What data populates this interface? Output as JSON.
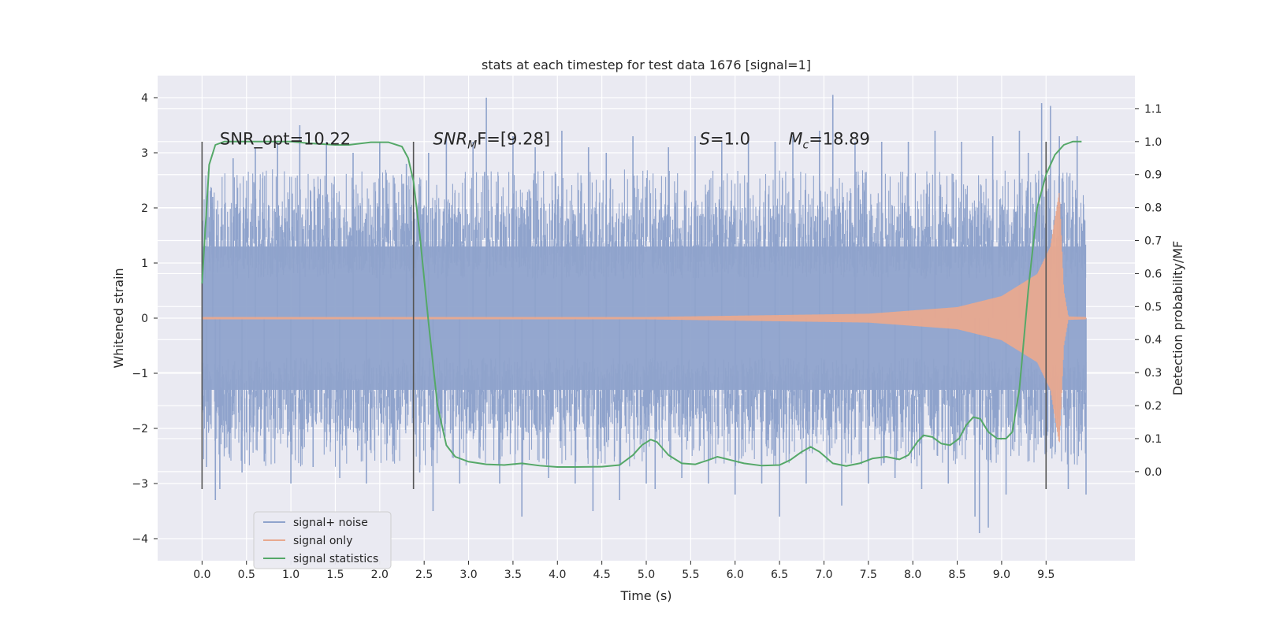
{
  "chart_data": {
    "type": "line",
    "title": "stats at each timestep for test data 1676 [signal=1]",
    "xlabel": "Time (s)",
    "ylabel": "Whitened strain",
    "y2label": "Detection probability/MF",
    "xlim": [
      -0.5,
      10.5
    ],
    "ylim": [
      -4.4,
      4.4
    ],
    "y2lim": [
      -0.27,
      1.2
    ],
    "xticks": [
      0.0,
      0.5,
      1.0,
      1.5,
      2.0,
      2.5,
      3.0,
      3.5,
      4.0,
      4.5,
      5.0,
      5.5,
      6.0,
      6.5,
      7.0,
      7.5,
      8.0,
      8.5,
      9.0,
      9.5
    ],
    "xtick_labels": [
      "0.0",
      "0.5",
      "1.0",
      "1.5",
      "2.0",
      "2.5",
      "3.0",
      "3.5",
      "4.0",
      "4.5",
      "5.0",
      "5.5",
      "6.0",
      "6.5",
      "7.0",
      "7.5",
      "8.0",
      "8.5",
      "9.0",
      "9.5"
    ],
    "yticks": [
      -4,
      -3,
      -2,
      -1,
      0,
      1,
      2,
      3,
      4
    ],
    "ytick_labels": [
      "−4",
      "−3",
      "−2",
      "−1",
      "0",
      "1",
      "2",
      "3",
      "4"
    ],
    "y2ticks": [
      0.0,
      0.1,
      0.2,
      0.3,
      0.4,
      0.5,
      0.6,
      0.7,
      0.8,
      0.9,
      1.0,
      1.1
    ],
    "y2tick_labels": [
      "0.0",
      "0.1",
      "0.2",
      "0.3",
      "0.4",
      "0.5",
      "0.6",
      "0.7",
      "0.8",
      "0.9",
      "1.0",
      "1.1"
    ],
    "grid": true,
    "legend_position": "lower-left",
    "vlines": [
      0.0,
      2.38,
      9.5
    ],
    "vline_range": [
      -3.1,
      3.2
    ],
    "annotations": [
      {
        "label": "SNR_opt=10.22",
        "x": 0.2,
        "y": 3.15
      },
      {
        "label": "SNR",
        "sub": "M",
        "suffix": "F=[9.28]",
        "italic": true,
        "x": 2.6,
        "y": 3.15
      },
      {
        "label": "S",
        "suffix": "=1.0",
        "italic": true,
        "x": 5.6,
        "y": 3.15
      },
      {
        "label": "M",
        "sub": "c",
        "suffix": "=18.89",
        "italic": true,
        "x": 6.6,
        "y": 3.15
      }
    ],
    "series": [
      {
        "name": "signal+ noise",
        "axis": "left",
        "color": "#8fa3cc",
        "style": "noise",
        "x_range": [
          0.0,
          9.95
        ],
        "amplitude": 1.3,
        "peaks": [
          [
            0.05,
            -2.7
          ],
          [
            0.12,
            2.2
          ],
          [
            0.15,
            -3.3
          ],
          [
            0.2,
            -3.1
          ],
          [
            0.35,
            2.9
          ],
          [
            0.45,
            -2.8
          ],
          [
            0.6,
            3.1
          ],
          [
            0.7,
            -2.6
          ],
          [
            0.85,
            3.2
          ],
          [
            1.0,
            -3.0
          ],
          [
            1.1,
            3.5
          ],
          [
            1.25,
            -2.7
          ],
          [
            1.4,
            3.2
          ],
          [
            1.55,
            -2.9
          ],
          [
            1.7,
            3.0
          ],
          [
            1.85,
            -3.0
          ],
          [
            2.0,
            3.2
          ],
          [
            2.15,
            -2.6
          ],
          [
            2.3,
            2.8
          ],
          [
            2.45,
            -2.8
          ],
          [
            2.55,
            3.0
          ],
          [
            2.6,
            -3.5
          ],
          [
            2.75,
            3.3
          ],
          [
            2.9,
            -3.0
          ],
          [
            3.05,
            3.2
          ],
          [
            3.2,
            4.0
          ],
          [
            3.35,
            -3.0
          ],
          [
            3.5,
            3.3
          ],
          [
            3.6,
            -3.6
          ],
          [
            3.75,
            3.1
          ],
          [
            3.9,
            -2.9
          ],
          [
            4.05,
            3.4
          ],
          [
            4.2,
            -3.0
          ],
          [
            4.35,
            3.1
          ],
          [
            4.4,
            -3.5
          ],
          [
            4.55,
            3.0
          ],
          [
            4.7,
            -3.3
          ],
          [
            4.85,
            3.3
          ],
          [
            5.0,
            -3.0
          ],
          [
            5.1,
            -3.1
          ],
          [
            5.25,
            3.1
          ],
          [
            5.4,
            -2.9
          ],
          [
            5.55,
            3.3
          ],
          [
            5.7,
            -3.0
          ],
          [
            5.85,
            3.2
          ],
          [
            6.0,
            -3.2
          ],
          [
            6.15,
            3.3
          ],
          [
            6.3,
            -3.0
          ],
          [
            6.45,
            3.2
          ],
          [
            6.5,
            -3.6
          ],
          [
            6.65,
            3.3
          ],
          [
            6.8,
            -3.0
          ],
          [
            6.95,
            3.4
          ],
          [
            7.1,
            4.05
          ],
          [
            7.2,
            -3.4
          ],
          [
            7.35,
            3.2
          ],
          [
            7.5,
            -3.0
          ],
          [
            7.65,
            3.2
          ],
          [
            7.8,
            -2.9
          ],
          [
            7.95,
            3.2
          ],
          [
            8.1,
            -3.1
          ],
          [
            8.25,
            3.4
          ],
          [
            8.4,
            -3.0
          ],
          [
            8.55,
            3.2
          ],
          [
            8.7,
            -3.6
          ],
          [
            8.75,
            -3.9
          ],
          [
            8.85,
            -3.8
          ],
          [
            8.9,
            3.3
          ],
          [
            9.05,
            -3.2
          ],
          [
            9.2,
            3.4
          ],
          [
            9.3,
            3.0
          ],
          [
            9.45,
            3.9
          ],
          [
            9.55,
            3.85
          ],
          [
            9.65,
            3.3
          ],
          [
            9.75,
            -3.1
          ],
          [
            9.85,
            3.3
          ],
          [
            9.95,
            -3.2
          ]
        ]
      },
      {
        "name": "signal only",
        "axis": "left",
        "color": "#e8a98f",
        "style": "chirp",
        "x_range": [
          0.0,
          9.95
        ],
        "envelope": [
          [
            0.0,
            0.02
          ],
          [
            5.0,
            0.02
          ],
          [
            7.5,
            0.08
          ],
          [
            8.5,
            0.2
          ],
          [
            9.0,
            0.4
          ],
          [
            9.4,
            0.8
          ],
          [
            9.55,
            1.3
          ],
          [
            9.65,
            2.3
          ],
          [
            9.7,
            0.5
          ],
          [
            9.75,
            0.03
          ],
          [
            9.95,
            0.02
          ]
        ]
      },
      {
        "name": "signal statistics",
        "axis": "right",
        "color": "#55a868",
        "style": "line",
        "points": [
          [
            0.0,
            0.57
          ],
          [
            0.08,
            0.93
          ],
          [
            0.15,
            0.99
          ],
          [
            0.25,
            1.0
          ],
          [
            0.5,
            1.0
          ],
          [
            1.0,
            1.0
          ],
          [
            1.2,
            0.995
          ],
          [
            1.5,
            0.99
          ],
          [
            1.65,
            0.99
          ],
          [
            1.9,
            0.998
          ],
          [
            2.1,
            0.998
          ],
          [
            2.25,
            0.985
          ],
          [
            2.32,
            0.95
          ],
          [
            2.38,
            0.88
          ],
          [
            2.45,
            0.72
          ],
          [
            2.55,
            0.45
          ],
          [
            2.65,
            0.2
          ],
          [
            2.75,
            0.08
          ],
          [
            2.85,
            0.045
          ],
          [
            3.0,
            0.03
          ],
          [
            3.2,
            0.022
          ],
          [
            3.4,
            0.02
          ],
          [
            3.6,
            0.025
          ],
          [
            3.8,
            0.018
          ],
          [
            4.0,
            0.014
          ],
          [
            4.2,
            0.014
          ],
          [
            4.5,
            0.015
          ],
          [
            4.7,
            0.02
          ],
          [
            4.85,
            0.05
          ],
          [
            4.95,
            0.08
          ],
          [
            5.05,
            0.097
          ],
          [
            5.12,
            0.09
          ],
          [
            5.25,
            0.05
          ],
          [
            5.4,
            0.025
          ],
          [
            5.55,
            0.022
          ],
          [
            5.7,
            0.035
          ],
          [
            5.8,
            0.045
          ],
          [
            5.95,
            0.035
          ],
          [
            6.1,
            0.025
          ],
          [
            6.3,
            0.018
          ],
          [
            6.5,
            0.02
          ],
          [
            6.62,
            0.035
          ],
          [
            6.75,
            0.06
          ],
          [
            6.85,
            0.075
          ],
          [
            6.95,
            0.06
          ],
          [
            7.1,
            0.025
          ],
          [
            7.25,
            0.017
          ],
          [
            7.4,
            0.025
          ],
          [
            7.55,
            0.04
          ],
          [
            7.7,
            0.045
          ],
          [
            7.85,
            0.037
          ],
          [
            7.95,
            0.05
          ],
          [
            8.05,
            0.09
          ],
          [
            8.12,
            0.11
          ],
          [
            8.22,
            0.105
          ],
          [
            8.32,
            0.085
          ],
          [
            8.42,
            0.08
          ],
          [
            8.52,
            0.1
          ],
          [
            8.6,
            0.14
          ],
          [
            8.68,
            0.165
          ],
          [
            8.76,
            0.16
          ],
          [
            8.85,
            0.12
          ],
          [
            8.95,
            0.1
          ],
          [
            9.05,
            0.1
          ],
          [
            9.12,
            0.12
          ],
          [
            9.2,
            0.25
          ],
          [
            9.3,
            0.55
          ],
          [
            9.4,
            0.8
          ],
          [
            9.5,
            0.9
          ],
          [
            9.6,
            0.96
          ],
          [
            9.7,
            0.99
          ],
          [
            9.8,
            1.0
          ],
          [
            9.9,
            1.0
          ]
        ]
      }
    ]
  }
}
